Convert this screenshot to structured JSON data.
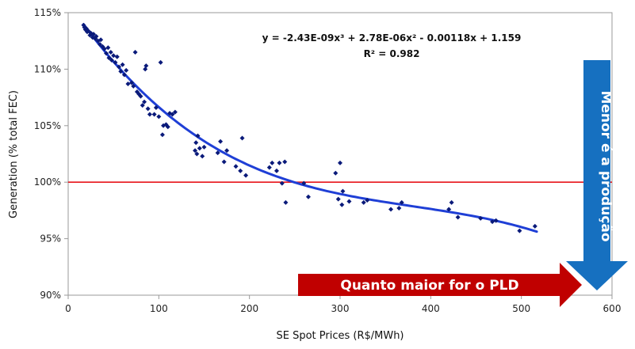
{
  "chart_data": {
    "type": "scatter",
    "title": "",
    "xlabel": "SE Spot Prices (R$/MWh)",
    "ylabel": "Generation (% total FEC)",
    "xlim": [
      0,
      600
    ],
    "ylim": [
      90,
      115
    ],
    "x_ticks": [
      0,
      100,
      200,
      300,
      400,
      500,
      600
    ],
    "x_tick_labels": [
      "0",
      "100",
      "200",
      "300",
      "400",
      "500",
      "600"
    ],
    "y_ticks": [
      90,
      95,
      100,
      105,
      110,
      115
    ],
    "y_tick_labels": [
      "90%",
      "95%",
      "100%",
      "105%",
      "110%",
      "115%"
    ],
    "grid": false,
    "reference_line": {
      "y": 100,
      "color": "#e8141b"
    },
    "trendline": {
      "type": "polynomial",
      "coefficients": [
        1.159,
        -0.00118,
        2.78e-06,
        -2.43e-09
      ],
      "x_range": [
        17,
        517
      ],
      "color": "#1f3fd6",
      "equation_label": "y = -2.43E-09x³ + 2.78E-06x² - 0.00118x + 1.159",
      "r2_label": "R² = 0.982"
    },
    "series": [
      {
        "marker_color": "#0a1a7a",
        "points": [
          [
            17,
            113.9
          ],
          [
            18,
            113.7
          ],
          [
            19,
            113.5
          ],
          [
            20,
            113.6
          ],
          [
            21,
            113.3
          ],
          [
            22,
            113.4
          ],
          [
            24,
            113.0
          ],
          [
            25,
            113.2
          ],
          [
            27,
            112.8
          ],
          [
            28,
            113.1
          ],
          [
            30,
            112.7
          ],
          [
            31,
            112.9
          ],
          [
            33,
            112.5
          ],
          [
            35,
            112.2
          ],
          [
            36,
            112.6
          ],
          [
            38,
            112.0
          ],
          [
            40,
            111.8
          ],
          [
            42,
            111.4
          ],
          [
            44,
            111.9
          ],
          [
            45,
            111.0
          ],
          [
            47,
            111.5
          ],
          [
            48,
            110.8
          ],
          [
            50,
            111.2
          ],
          [
            52,
            110.6
          ],
          [
            54,
            111.1
          ],
          [
            56,
            110.2
          ],
          [
            58,
            109.8
          ],
          [
            60,
            110.4
          ],
          [
            62,
            109.5
          ],
          [
            64,
            109.9
          ],
          [
            66,
            108.7
          ],
          [
            70,
            108.8
          ],
          [
            72,
            108.5
          ],
          [
            74,
            111.5
          ],
          [
            76,
            108.0
          ],
          [
            78,
            107.8
          ],
          [
            80,
            107.6
          ],
          [
            82,
            106.8
          ],
          [
            84,
            107.1
          ],
          [
            85,
            110.0
          ],
          [
            86,
            110.3
          ],
          [
            88,
            106.5
          ],
          [
            90,
            106.0
          ],
          [
            95,
            106.0
          ],
          [
            97,
            106.6
          ],
          [
            100,
            105.8
          ],
          [
            102,
            110.6
          ],
          [
            104,
            104.2
          ],
          [
            105,
            105.0
          ],
          [
            108,
            105.1
          ],
          [
            110,
            104.9
          ],
          [
            112,
            106.1
          ],
          [
            115,
            106.0
          ],
          [
            118,
            106.2
          ],
          [
            140,
            102.8
          ],
          [
            141,
            103.5
          ],
          [
            142,
            102.5
          ],
          [
            143,
            104.1
          ],
          [
            145,
            103.0
          ],
          [
            148,
            102.3
          ],
          [
            150,
            103.1
          ],
          [
            165,
            102.6
          ],
          [
            168,
            103.6
          ],
          [
            172,
            101.8
          ],
          [
            175,
            102.8
          ],
          [
            185,
            101.4
          ],
          [
            190,
            101.0
          ],
          [
            192,
            103.9
          ],
          [
            196,
            100.6
          ],
          [
            222,
            101.3
          ],
          [
            225,
            101.7
          ],
          [
            230,
            101.0
          ],
          [
            233,
            101.7
          ],
          [
            236,
            99.9
          ],
          [
            239,
            101.8
          ],
          [
            240,
            98.2
          ],
          [
            260,
            99.9
          ],
          [
            265,
            98.7
          ],
          [
            295,
            100.8
          ],
          [
            298,
            98.5
          ],
          [
            300,
            101.7
          ],
          [
            302,
            98.0
          ],
          [
            303,
            99.2
          ],
          [
            310,
            98.3
          ],
          [
            326,
            98.2
          ],
          [
            330,
            98.4
          ],
          [
            356,
            97.6
          ],
          [
            365,
            97.7
          ],
          [
            368,
            98.2
          ],
          [
            420,
            97.6
          ],
          [
            423,
            98.2
          ],
          [
            430,
            96.9
          ],
          [
            455,
            96.8
          ],
          [
            468,
            96.5
          ],
          [
            472,
            96.6
          ],
          [
            498,
            95.7
          ],
          [
            515,
            96.1
          ]
        ]
      }
    ],
    "annotations": [
      {
        "text": "Quanto maior for o PLD",
        "color": "#c00000",
        "shape": "right-arrow"
      },
      {
        "text": "Menor é a produção",
        "color": "#1670c0",
        "shape": "down-arrow"
      }
    ]
  }
}
